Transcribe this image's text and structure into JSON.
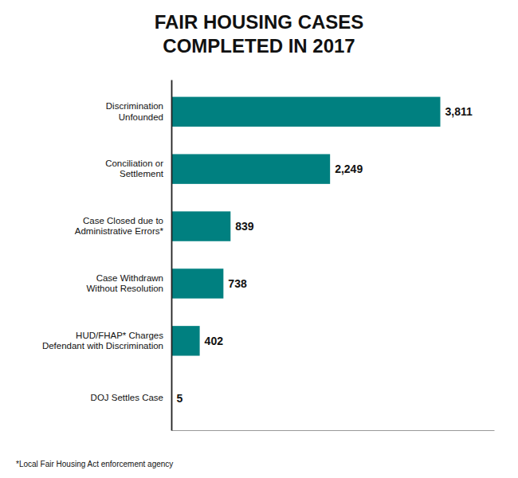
{
  "chart_data": {
    "type": "bar",
    "orientation": "horizontal",
    "title": "FAIR HOUSING CASES\nCOMPLETED IN 2017",
    "categories": [
      "DOJ Settles Case",
      "HUD/FHAP* Charges\nDefendant with Discrimination",
      "Case Withdrawn\nWithout Resolution",
      "Case Closed due to\nAdministrative Errors*",
      "Conciliation or\nSettlement",
      "Discrimination\nUnfounded"
    ],
    "values": [
      5,
      402,
      738,
      839,
      2249,
      3811
    ],
    "value_labels": [
      "5",
      "402",
      "738",
      "839",
      "2,249",
      "3,811"
    ],
    "data_labels": true,
    "color": "#008080",
    "xlim": [
      0,
      4573.2
    ],
    "tick_labels": "y",
    "annotations": [
      "*Local Fair Housing Act enforcement agency"
    ]
  }
}
